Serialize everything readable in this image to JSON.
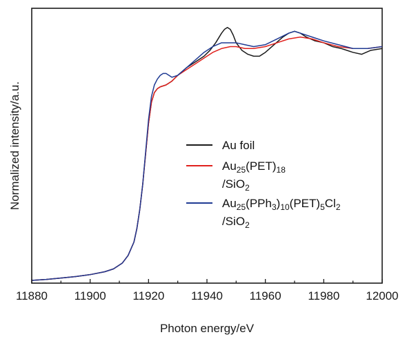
{
  "chart_data": {
    "type": "line",
    "title": "",
    "xlabel": "Photon energy/eV",
    "ylabel": "Normalized intensity/a.u.",
    "xlim": [
      11880,
      12000
    ],
    "ylim": [
      0,
      1.42
    ],
    "x_ticks": [
      "11880",
      "11900",
      "11920",
      "11940",
      "11960",
      "11980",
      "12000"
    ],
    "legend_position": "center-right",
    "grid": false,
    "legend": {
      "au_foil": "Au foil",
      "pet_base": "Au",
      "pet_sub_25": "25",
      "pet_mid": "(PET)",
      "pet_sub_18": "18",
      "pet_line2_pre": "/SiO",
      "pet_line2_sub": "2",
      "pph_base": "Au",
      "pph_sub_25": "25",
      "pph_mid1": "(PPh",
      "pph_sub_3": "3",
      "pph_mid2": ")",
      "pph_sub_10": "10",
      "pph_mid3": "(PET)",
      "pph_sub_5": "5",
      "pph_mid4": "Cl",
      "pph_sub_2": "2",
      "pph_line2_pre": "/SiO",
      "pph_line2_sub": "2"
    },
    "series": [
      {
        "key": "au_foil",
        "color": "#1a1a1a",
        "x": [
          11880,
          11885,
          11890,
          11895,
          11900,
          11905,
          11908,
          11911,
          11913,
          11915,
          11916,
          11917,
          11918,
          11919,
          11920,
          11921,
          11922,
          11923,
          11924,
          11926,
          11928,
          11930,
          11933,
          11936,
          11939,
          11941,
          11943,
          11945,
          11946,
          11947,
          11948,
          11949,
          11950,
          11952,
          11954,
          11956,
          11958,
          11960,
          11963,
          11966,
          11968,
          11970,
          11972,
          11974,
          11977,
          11980,
          11983,
          11986,
          11990,
          11993,
          11996,
          12000
        ],
        "y": [
          0.0,
          0.005,
          0.012,
          0.02,
          0.03,
          0.045,
          0.06,
          0.09,
          0.13,
          0.2,
          0.27,
          0.37,
          0.5,
          0.66,
          0.82,
          0.93,
          0.98,
          1.0,
          1.01,
          1.02,
          1.04,
          1.07,
          1.11,
          1.14,
          1.17,
          1.2,
          1.24,
          1.29,
          1.31,
          1.32,
          1.31,
          1.28,
          1.24,
          1.2,
          1.18,
          1.17,
          1.17,
          1.19,
          1.23,
          1.27,
          1.29,
          1.3,
          1.29,
          1.27,
          1.25,
          1.24,
          1.22,
          1.21,
          1.19,
          1.18,
          1.2,
          1.21
        ]
      },
      {
        "key": "au25_pet",
        "color": "#e0201c",
        "x": [
          11880,
          11885,
          11890,
          11895,
          11900,
          11905,
          11908,
          11911,
          11913,
          11915,
          11916,
          11917,
          11918,
          11919,
          11920,
          11921,
          11922,
          11923,
          11924,
          11926,
          11928,
          11930,
          11933,
          11936,
          11939,
          11942,
          11945,
          11948,
          11950,
          11953,
          11956,
          11960,
          11964,
          11968,
          11972,
          11976,
          11980,
          11985,
          11990,
          11995,
          12000
        ],
        "y": [
          0.0,
          0.005,
          0.012,
          0.02,
          0.03,
          0.045,
          0.06,
          0.09,
          0.13,
          0.2,
          0.27,
          0.37,
          0.5,
          0.66,
          0.82,
          0.93,
          0.98,
          1.0,
          1.01,
          1.02,
          1.04,
          1.07,
          1.1,
          1.13,
          1.16,
          1.19,
          1.21,
          1.22,
          1.22,
          1.21,
          1.21,
          1.22,
          1.24,
          1.26,
          1.27,
          1.26,
          1.24,
          1.22,
          1.21,
          1.21,
          1.22
        ]
      },
      {
        "key": "au25_pph",
        "color": "#1f3a93",
        "x": [
          11880,
          11885,
          11890,
          11895,
          11900,
          11905,
          11908,
          11911,
          11913,
          11915,
          11916,
          11917,
          11918,
          11919,
          11920,
          11921,
          11922,
          11923,
          11924,
          11925,
          11926,
          11927,
          11928,
          11930,
          11933,
          11936,
          11939,
          11942,
          11945,
          11948,
          11950,
          11953,
          11956,
          11960,
          11964,
          11968,
          11970,
          11972,
          11976,
          11980,
          11985,
          11990,
          11995,
          12000
        ],
        "y": [
          0.0,
          0.005,
          0.012,
          0.02,
          0.03,
          0.045,
          0.06,
          0.09,
          0.13,
          0.2,
          0.27,
          0.37,
          0.5,
          0.67,
          0.84,
          0.96,
          1.02,
          1.05,
          1.07,
          1.08,
          1.08,
          1.07,
          1.06,
          1.07,
          1.11,
          1.15,
          1.19,
          1.22,
          1.24,
          1.24,
          1.24,
          1.23,
          1.22,
          1.23,
          1.26,
          1.29,
          1.3,
          1.29,
          1.27,
          1.25,
          1.23,
          1.21,
          1.21,
          1.22
        ]
      }
    ]
  }
}
